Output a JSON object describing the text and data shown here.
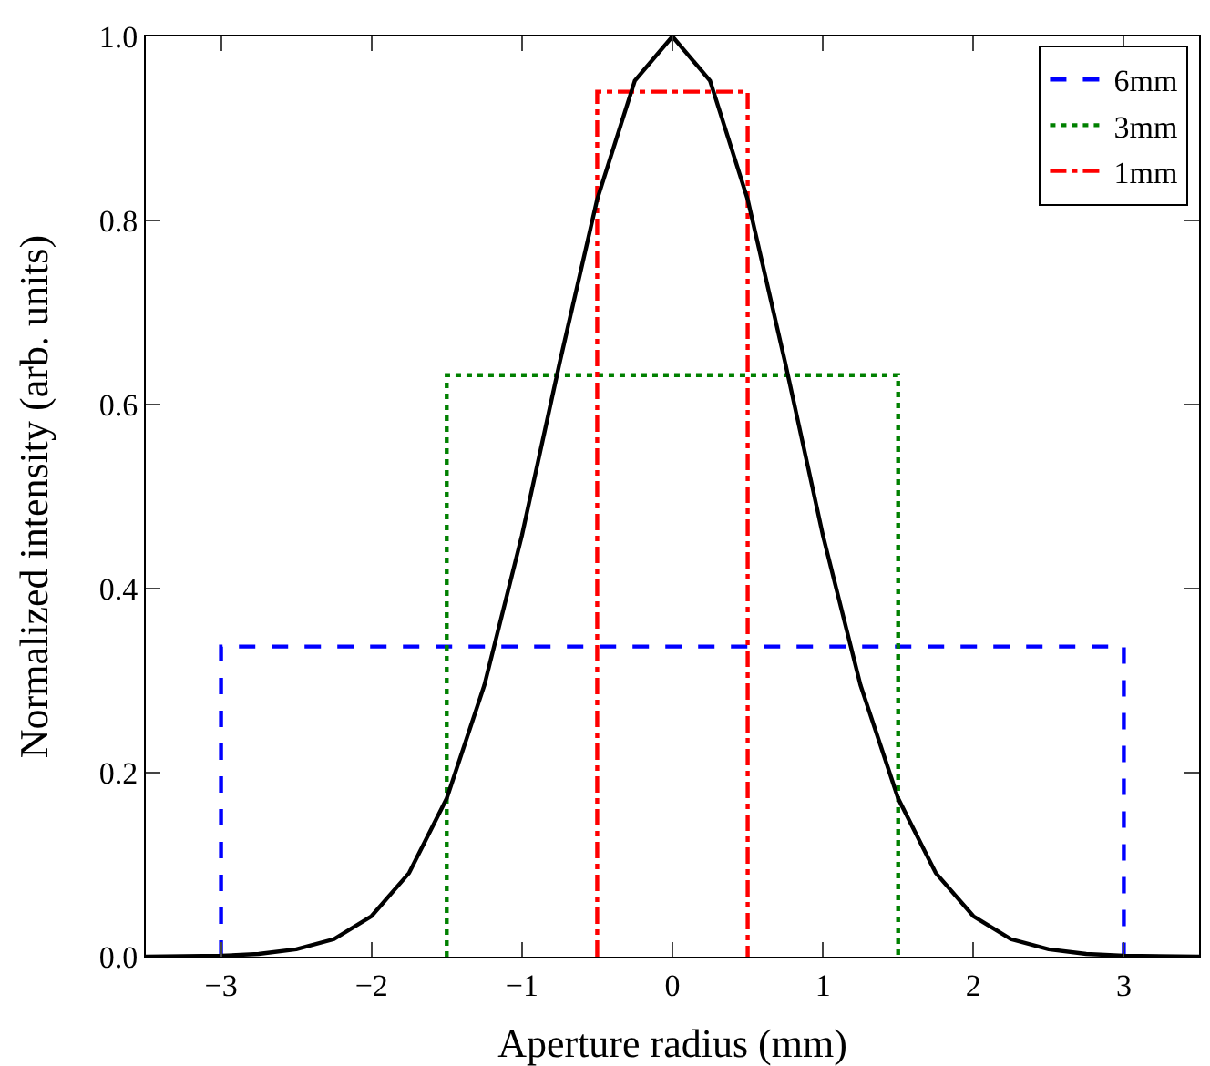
{
  "chart_data": {
    "type": "line",
    "xlabel": "Aperture radius (mm)",
    "ylabel": "Normalized intensity (arb. units)",
    "xlim": [
      -3.5,
      3.5
    ],
    "ylim": [
      0,
      1
    ],
    "xticks": [
      {
        "value": -3,
        "label": "−3"
      },
      {
        "value": -2,
        "label": "−2"
      },
      {
        "value": -1,
        "label": "−1"
      },
      0,
      1,
      2,
      3
    ],
    "yticks": [
      {
        "value": 0,
        "label": "0.0"
      },
      {
        "value": 0.2,
        "label": "0.2"
      },
      {
        "value": 0.4,
        "label": "0.4"
      },
      {
        "value": 0.6,
        "label": "0.6"
      },
      {
        "value": 0.8,
        "label": "0.8"
      },
      {
        "value": 1,
        "label": "1.0"
      }
    ],
    "grid": false,
    "legend": "top right",
    "marker": "none",
    "series": [
      {
        "name": "6mm",
        "color": "#0000ff",
        "line_style": "dashed",
        "x": [
          -3,
          -3,
          3,
          3
        ],
        "values": [
          0,
          0.337,
          0.337,
          0
        ]
      },
      {
        "name": "3mm",
        "color": "#008000",
        "line_style": "dotted",
        "x": [
          -1.5,
          -1.5,
          1.5,
          1.5
        ],
        "values": [
          0,
          0.632,
          0.632,
          0
        ]
      },
      {
        "name": "1mm",
        "color": "#ff0000",
        "line_style": "dashdot",
        "x": [
          -0.5,
          -0.5,
          0.5,
          0.5
        ],
        "values": [
          0,
          0.94,
          0.94,
          0
        ]
      },
      {
        "color": "#000000",
        "line_style": "solid",
        "x": [
          -3.5,
          -3,
          -2.75,
          -2.5,
          -2.25,
          -2,
          -1.75,
          -1.5,
          -1.25,
          -1,
          -0.75,
          -0.5,
          -0.25,
          0,
          0.25,
          0.5,
          0.75,
          1,
          1.25,
          1.5,
          1.75,
          2,
          2.25,
          2.5,
          2.75,
          3,
          3.5
        ],
        "values": [
          0,
          0.001,
          0.003,
          0.008,
          0.019,
          0.044,
          0.091,
          0.172,
          0.295,
          0.458,
          0.645,
          0.823,
          0.952,
          1,
          0.952,
          0.823,
          0.645,
          0.458,
          0.295,
          0.172,
          0.091,
          0.044,
          0.019,
          0.008,
          0.003,
          0.001,
          0
        ]
      }
    ]
  }
}
